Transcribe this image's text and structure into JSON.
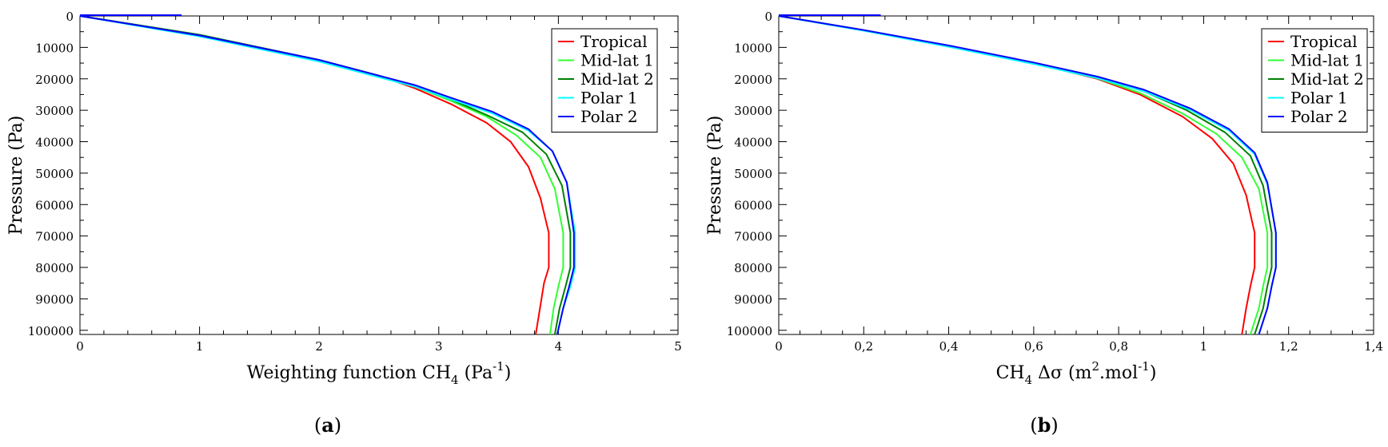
{
  "chart_data": [
    {
      "type": "line",
      "panel": "a",
      "xlabel_main": "Weighting function CH",
      "xlabel_sub": "4",
      "xlabel_tail": " (Pa",
      "xlabel_sup": "-1",
      "xlabel_close": ")",
      "ylabel": "Pressure (Pa)",
      "xlim": [
        0,
        5
      ],
      "ylim": [
        0,
        101325
      ],
      "xticks": [
        "0",
        "1",
        "2",
        "3",
        "4",
        "5"
      ],
      "xtick_values": [
        0,
        1,
        2,
        3,
        4,
        5
      ],
      "yticks": [
        "0",
        "10000",
        "20000",
        "30000",
        "40000",
        "50000",
        "60000",
        "70000",
        "80000",
        "90000",
        "100000"
      ],
      "ytick_values": [
        0,
        10000,
        20000,
        30000,
        40000,
        50000,
        60000,
        70000,
        80000,
        90000,
        100000
      ],
      "legend": "top-right",
      "top_segment": {
        "x": [
          0,
          0.85
        ],
        "y": [
          0,
          0
        ],
        "color": "#0000ff"
      },
      "series": [
        {
          "name": "Tropical",
          "color": "#ff0000",
          "x": [
            0,
            1,
            2,
            2.5,
            2.8,
            3.1,
            3.4,
            3.6,
            3.75,
            3.85,
            3.92,
            3.92,
            3.88,
            3.85,
            3.81
          ],
          "y": [
            0,
            6000,
            14000,
            19000,
            23000,
            28000,
            34000,
            40000,
            48000,
            58000,
            69000,
            80000,
            85000,
            92000,
            101325
          ]
        },
        {
          "name": "Mid-lat 1",
          "color": "#33ff33",
          "x": [
            0,
            1,
            2,
            2.5,
            2.8,
            3.1,
            3.4,
            3.65,
            3.85,
            3.97,
            4.04,
            4.04,
            4.0,
            3.96,
            3.93
          ],
          "y": [
            0,
            6000,
            14000,
            19000,
            22500,
            27000,
            32000,
            38000,
            45000,
            55000,
            69000,
            80000,
            86000,
            93000,
            101325
          ]
        },
        {
          "name": "Mid-lat 2",
          "color": "#008000",
          "x": [
            0,
            1,
            2,
            2.5,
            2.8,
            3.1,
            3.4,
            3.7,
            3.9,
            4.03,
            4.1,
            4.1,
            4.06,
            4.01,
            3.97
          ],
          "y": [
            0,
            6000,
            14000,
            19000,
            22300,
            26500,
            31500,
            37000,
            44000,
            54000,
            69000,
            80000,
            86000,
            93000,
            101325
          ]
        },
        {
          "name": "Polar 1",
          "color": "#00ffff",
          "x": [
            0,
            1,
            2,
            2.5,
            2.8,
            3.1,
            3.45,
            3.75,
            3.95,
            4.07,
            4.14,
            4.14,
            4.1,
            4.04,
            3.99
          ],
          "y": [
            0,
            6500,
            14500,
            19500,
            22500,
            26500,
            31000,
            36500,
            43000,
            53000,
            69000,
            80000,
            86000,
            93000,
            101325
          ]
        },
        {
          "name": "Polar 2",
          "color": "#0000ff",
          "x": [
            0,
            1,
            2,
            2.5,
            2.8,
            3.1,
            3.45,
            3.75,
            3.95,
            4.07,
            4.13,
            4.13,
            4.09,
            4.04,
            3.99
          ],
          "y": [
            0,
            6200,
            14000,
            19000,
            22000,
            26000,
            30500,
            36000,
            43000,
            53000,
            69000,
            80000,
            86000,
            93000,
            101325
          ]
        }
      ]
    },
    {
      "type": "line",
      "panel": "b",
      "xlabel_main": "CH",
      "xlabel_sub": "4",
      "xlabel_tail": " Δσ (m",
      "xlabel_sup": "2",
      "xlabel_close": ".mol",
      "xlabel_sup2": "-1",
      "xlabel_end": ")",
      "ylabel": "Pressure (Pa)",
      "xlim": [
        0,
        1.4
      ],
      "ylim": [
        0,
        101325
      ],
      "xticks": [
        "0",
        "0,2",
        "0,4",
        "0,6",
        "0,8",
        "1",
        "1,2",
        "1,4"
      ],
      "xtick_values": [
        0,
        0.2,
        0.4,
        0.6,
        0.8,
        1.0,
        1.2,
        1.4
      ],
      "yticks": [
        "0",
        "10000",
        "20000",
        "30000",
        "40000",
        "50000",
        "60000",
        "70000",
        "80000",
        "90000",
        "100000"
      ],
      "ytick_values": [
        0,
        10000,
        20000,
        30000,
        40000,
        50000,
        60000,
        70000,
        80000,
        90000,
        100000
      ],
      "legend": "top-right",
      "top_segment": {
        "x": [
          0,
          0.24
        ],
        "y": [
          0,
          0
        ],
        "color": "#0000ff"
      },
      "series": [
        {
          "name": "Tropical",
          "color": "#ff0000",
          "x": [
            0,
            0.2,
            0.4,
            0.6,
            0.75,
            0.85,
            0.95,
            1.02,
            1.07,
            1.1,
            1.12,
            1.12,
            1.11,
            1.1,
            1.09
          ],
          "y": [
            0,
            4500,
            9500,
            15000,
            20000,
            25000,
            32000,
            39000,
            47000,
            57000,
            69000,
            80000,
            86000,
            93000,
            101325
          ]
        },
        {
          "name": "Mid-lat 1",
          "color": "#33ff33",
          "x": [
            0,
            0.2,
            0.4,
            0.6,
            0.75,
            0.85,
            0.95,
            1.03,
            1.09,
            1.13,
            1.15,
            1.15,
            1.14,
            1.13,
            1.11
          ],
          "y": [
            0,
            4500,
            9500,
            15000,
            19800,
            24500,
            31000,
            37500,
            45000,
            55000,
            69000,
            80000,
            86000,
            93000,
            101325
          ]
        },
        {
          "name": "Mid-lat 2",
          "color": "#008000",
          "x": [
            0,
            0.2,
            0.4,
            0.6,
            0.75,
            0.86,
            0.96,
            1.05,
            1.11,
            1.14,
            1.16,
            1.16,
            1.15,
            1.14,
            1.12
          ],
          "y": [
            0,
            4500,
            9500,
            15000,
            19500,
            24000,
            30000,
            37000,
            44500,
            54000,
            69000,
            80000,
            86000,
            93000,
            101325
          ]
        },
        {
          "name": "Polar 1",
          "color": "#00ffff",
          "x": [
            0,
            0.2,
            0.4,
            0.6,
            0.75,
            0.86,
            0.97,
            1.06,
            1.12,
            1.15,
            1.17,
            1.17,
            1.16,
            1.15,
            1.13
          ],
          "y": [
            0,
            4700,
            9800,
            15300,
            19800,
            24000,
            30000,
            36500,
            44000,
            53500,
            69000,
            80000,
            86000,
            93000,
            101325
          ]
        },
        {
          "name": "Polar 2",
          "color": "#0000ff",
          "x": [
            0,
            0.2,
            0.4,
            0.6,
            0.75,
            0.86,
            0.97,
            1.06,
            1.12,
            1.15,
            1.17,
            1.17,
            1.16,
            1.15,
            1.13
          ],
          "y": [
            0,
            4500,
            9400,
            14800,
            19300,
            23500,
            29500,
            36000,
            43500,
            53000,
            69000,
            80000,
            86000,
            93000,
            101325
          ]
        }
      ]
    }
  ],
  "panel_labels": {
    "a": "a",
    "b": "b"
  }
}
